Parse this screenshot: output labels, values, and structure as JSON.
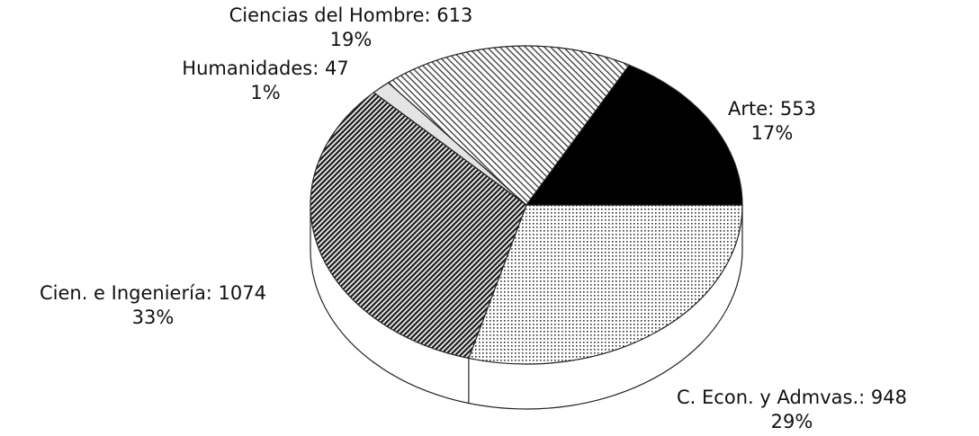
{
  "chart_data": {
    "type": "pie3d",
    "values": [
      948,
      1074,
      47,
      613,
      553
    ],
    "value_labels": [
      "C. Econ. y Admvas.: 948",
      "Cien. e Ingeniería: 1074",
      "Humanidades: 47",
      "Ciencias del Hombre: 613",
      "Arte: 553"
    ],
    "percents": [
      29,
      33,
      1,
      19,
      17
    ],
    "percent_labels": [
      "29%",
      "33%",
      "1%",
      "19%",
      "17%"
    ],
    "patterns": [
      "dots",
      "hatch-dense",
      "light",
      "hatch-light",
      "solid"
    ]
  }
}
